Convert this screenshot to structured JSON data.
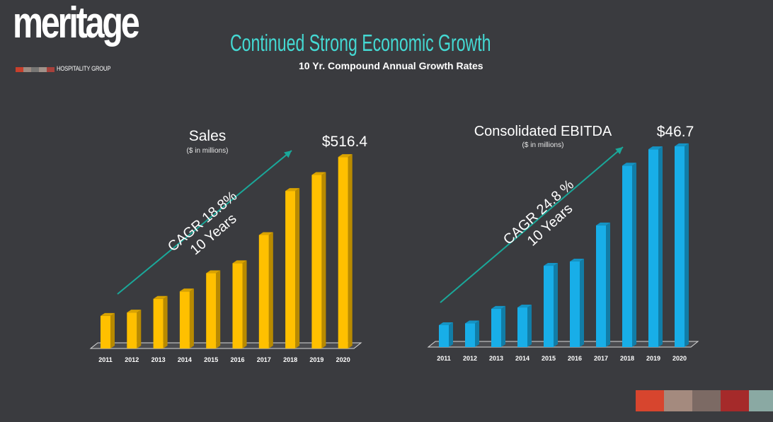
{
  "logo": {
    "word": "meritage",
    "subtext": "HOSPITALITY GROUP",
    "swatch_colors": [
      "#c8402c",
      "#9b8b82",
      "#777674",
      "#a0928a",
      "#a8413b"
    ]
  },
  "title": "Continued Strong Economic Growth",
  "subtitle": "10 Yr. Compound Annual Growth Rates",
  "chart_data": [
    {
      "type": "bar",
      "title": "Sales",
      "subtitle": "($ in millions)",
      "categories": [
        "2011",
        "2012",
        "2013",
        "2014",
        "2015",
        "2016",
        "2017",
        "2018",
        "2019",
        "2020"
      ],
      "values": [
        88,
        97,
        134,
        154,
        203,
        230,
        306,
        425,
        468,
        516.4
      ],
      "ylim": [
        0,
        530
      ],
      "end_label": "$516.4",
      "cagr_line1": "CAGR 18.8%",
      "cagr_line2": "10 Years",
      "bar_color": "#ffc000",
      "arrow_color": "#1aa89a"
    },
    {
      "type": "bar",
      "title": "Consolidated EBITDA",
      "subtitle": "($ in millions)",
      "categories": [
        "2011",
        "2012",
        "2013",
        "2014",
        "2015",
        "2016",
        "2017",
        "2018",
        "2019",
        "2020"
      ],
      "values": [
        5.1,
        5.5,
        8.9,
        9.2,
        18.9,
        19.9,
        28.3,
        42.2,
        46.0,
        46.7
      ],
      "ylim": [
        0,
        48
      ],
      "end_label": "$46.7",
      "cagr_line1": "CAGR 24.8 %",
      "cagr_line2": "10 Years",
      "bar_color": "#18aee8",
      "arrow_color": "#1aa89a"
    }
  ],
  "footer_colors": [
    "#d7452e",
    "#a48a7e",
    "#7c6a64",
    "#a52a2a",
    "#8aa9a3"
  ]
}
